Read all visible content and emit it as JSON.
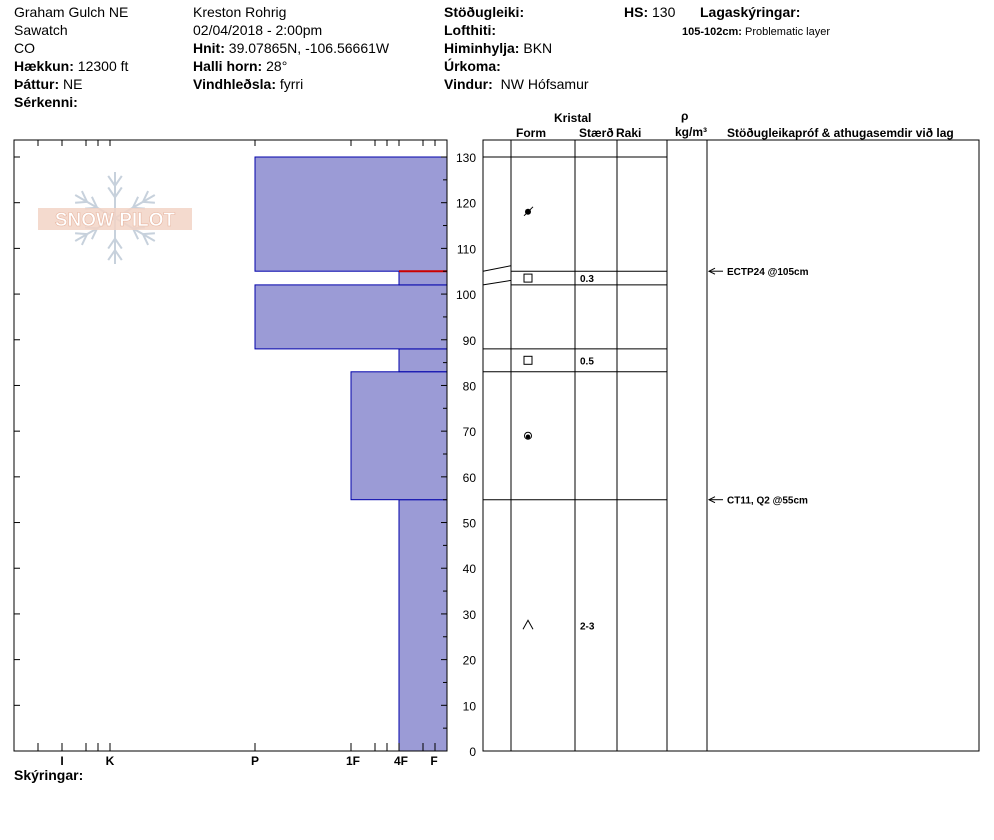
{
  "header": {
    "location": "Graham Gulch NE",
    "range": "Sawatch",
    "state": "CO",
    "elevation_label": "Hækkun:",
    "elevation_value": "12300 ft",
    "aspect_label": "Þáttur:",
    "aspect_value": "NE",
    "features_label": "Sérkenni:",
    "observer": "Kreston Rohrig",
    "datetime": "02/04/2018 - 2:00pm",
    "coords_label": "Hnit:",
    "coords_value": "39.07865N, -106.56661W",
    "slope_label": "Halli horn:",
    "slope_value": "28°",
    "wind_loading_label": "Vindhleðsla:",
    "wind_loading_value": "fyrri",
    "stability_label": "Stöðugleiki:",
    "air_temp_label": "Lofthiti:",
    "sky_label": "Himinhylja:",
    "sky_value": "BKN",
    "precip_label": "Úrkoma:",
    "wind_label": "Vindur:",
    "wind_value": "NW Hófsamur",
    "hs_label": "HS:",
    "hs_value": "130",
    "layer_notes_label": "Lagaskýringar:",
    "layer_note_range": "105-102cm:",
    "layer_note_text": "Problematic layer"
  },
  "columns": {
    "crystal": "Kristal",
    "form": "Form",
    "size": "Stærð",
    "moisture": "Raki",
    "rho": "ρ",
    "density_unit": "kg/m³",
    "tests": "Stöðugleikapróf & athugasemdir við lag"
  },
  "footer": {
    "notes_label": "Skýringar:"
  },
  "logo": {
    "text": "SNOW PILOT"
  },
  "chart_data": {
    "type": "bar",
    "orientation": "horizontal",
    "description_axis": "snow height (cm)",
    "ylim": [
      0,
      135
    ],
    "y_ticks": [
      0,
      10,
      20,
      30,
      40,
      50,
      60,
      70,
      80,
      90,
      100,
      110,
      120,
      130
    ],
    "x_ticks": [
      "I",
      "K",
      "P",
      "1F",
      "4F",
      "F"
    ],
    "hardness_layers": [
      {
        "bottom": 0,
        "top": 55,
        "hardness": "4F"
      },
      {
        "bottom": 55,
        "top": 83,
        "hardness": "1F"
      },
      {
        "bottom": 83,
        "top": 88,
        "hardness": "4F"
      },
      {
        "bottom": 88,
        "top": 102,
        "hardness": "P"
      },
      {
        "bottom": 102,
        "top": 105,
        "hardness": "4F"
      },
      {
        "bottom": 105,
        "top": 130,
        "hardness": "P"
      }
    ],
    "problem_layer": {
      "bottom": 102,
      "top": 105
    },
    "layer_boundaries": [
      130,
      105,
      102,
      88,
      83,
      55
    ],
    "grain_rows": [
      {
        "height": 118,
        "form": "decomposing-fragments",
        "size": ""
      },
      {
        "height": 103.5,
        "form": "faceted",
        "size": "0.3"
      },
      {
        "height": 85.5,
        "form": "faceted",
        "size": "0.5"
      },
      {
        "height": 69,
        "form": "rounded",
        "size": ""
      },
      {
        "height": 27.5,
        "form": "depth-hoar",
        "size": "2-3"
      }
    ],
    "tests": [
      {
        "height": 105,
        "label": "ECTP24 @105cm"
      },
      {
        "height": 55,
        "label": "CT11, Q2 @55cm"
      }
    ]
  }
}
